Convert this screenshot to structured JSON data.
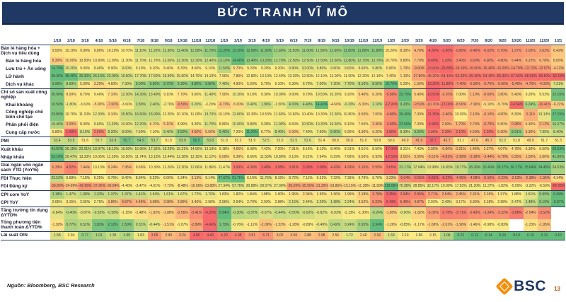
{
  "title": "BỨC TRANH VĨ MÔ",
  "footer": {
    "source": "Nguồn: Bloomberg, BSC Research",
    "logo_text": "BSC",
    "page": "13"
  },
  "colors": {
    "header_bg": "#1F3864",
    "scale_low": "#F8696B",
    "scale_mid": "#FFEB84",
    "scale_high": "#63BE7B",
    "logo_orange": "#F29111",
    "page_num_orange": "#C55A11"
  },
  "chart_data": {
    "type": "heatmap",
    "note": "values are monthly YoY readings; cell color = per-row 3-color scale (min red, median yellow, max green); rows flagged invert use reversed scale; blank strings = no data",
    "columns": [
      "1/18",
      "2/18",
      "3/18",
      "4/18",
      "5/18",
      "6/18",
      "7/18",
      "8/18",
      "9/18",
      "10/18",
      "11/18",
      "12/18",
      "1/19",
      "2/19",
      "3/19",
      "4/19",
      "5/19",
      "6/19",
      "7/19",
      "8/19",
      "9/19",
      "10/19",
      "11/19",
      "12/19",
      "1/20",
      "2/20",
      "3/20",
      "4/20",
      "5/20",
      "6/20",
      "7/20",
      "8/20",
      "9/20",
      "10/20",
      "11/20",
      "12/20",
      "1/21"
    ],
    "rows": [
      {
        "label": "Bán lẻ hàng hóa + Dịch vụ tiêu dùng",
        "indent": false,
        "invert": false,
        "group_end": false,
        "values": [
          "9.50%",
          "10.10%",
          "9.90%",
          "9.80%",
          "10.10%",
          "10.70%",
          "11.10%",
          "11.20%",
          "11.30%",
          "11.40%",
          "11.50%",
          "11.70%",
          "12.20%",
          "12.20%",
          "12.00%",
          "11.90%",
          "11.60%",
          "11.50%",
          "11.60%",
          "11.50%",
          "11.60%",
          "11.80%",
          "11.80%",
          "11.80%",
          "10.20%",
          "8.30%",
          "4.70%",
          "-4.30%",
          "-3.90%",
          "-0.80%",
          "-0.40%",
          "-0.02%",
          "0.70%",
          "1.27%",
          "2.03%",
          "2.62%",
          "6.42%"
        ]
      },
      {
        "label": "Bán lẻ hàng hóa",
        "indent": true,
        "invert": false,
        "group_end": false,
        "values": [
          "8.30%",
          "10.00%",
          "10.50%",
          "10.80%",
          "11.00%",
          "11.30%",
          "11.70%",
          "11.70%",
          "12.00%",
          "12.20%",
          "12.30%",
          "12.40%",
          "13.10%",
          "14.40%",
          "13.40%",
          "13.20%",
          "12.70%",
          "12.50%",
          "12.50%",
          "12.50%",
          "12.60%",
          "12.80%",
          "12.70%",
          "12.70%",
          "10.70%",
          "9.80%",
          "7.70%",
          "0.40%",
          "1.20%",
          "3.40%",
          "3.60%",
          "4.00%",
          "4.80%",
          "5.44%",
          "6.22%",
          "6.78%",
          "8.65%"
        ]
      },
      {
        "label": "Lưu trú + Ăn uống",
        "indent": true,
        "invert": false,
        "group_end": false,
        "values": [
          "14.70%",
          "10.20%",
          "9.00%",
          "9.40%",
          "8.90%",
          "9.60%",
          "9.10%",
          "9.10%",
          "8.40%",
          "8.30%",
          "8.60%",
          "9.10%",
          "11.50%",
          "5.70%",
          "9.20%",
          "9.20%",
          "9.20%",
          "9.80%",
          "10.00%",
          "9.80%",
          "9.60%",
          "9.60%",
          "9.60%",
          "9.80%",
          "6.80%",
          "1.70%",
          "-9.60%",
          "-23.60%",
          "-25.80%",
          "-18.10%",
          "-16.60%",
          "-16.40%",
          "-15.00%",
          "-14.70%",
          "-13.72%",
          "-12.97%",
          "-4.13%"
        ]
      },
      {
        "label": "Lữ hành",
        "indent": true,
        "invert": false,
        "group_end": false,
        "values": [
          "39.30%",
          "38.40%",
          "30.30%",
          "26.10%",
          "23.00%",
          "19.50%",
          "17.70%",
          "17.60%",
          "16.90%",
          "15.60%",
          "14.70%",
          "14.10%",
          "7.90%",
          "7.80%",
          "12.80%",
          "13.10%",
          "12.40%",
          "13.30%",
          "12.50%",
          "12.10%",
          "12.00%",
          "11.90%",
          "12.20%",
          "12.10%",
          "7.40%",
          "1.10%",
          "-27.80%",
          "-45.20%",
          "-54.10%",
          "-53.20%",
          "-55.40%",
          "-54.40%",
          "-56.30%",
          "-57.66%",
          "-58.60%",
          "-59.50%",
          "-62.18%"
        ]
      },
      {
        "label": "Dịch vụ khác",
        "indent": true,
        "invert": false,
        "group_end": true,
        "values": [
          "9.90%",
          "8.50%",
          "5.00%",
          "3.20%",
          "4.60%",
          "7.30%",
          "9.00%",
          "9.50%",
          "9.70%",
          "9.30%",
          "9.80%",
          "9.80%",
          "7.40%",
          "4.90%",
          "5.20%",
          "5.70%",
          "6.10%",
          "6.30%",
          "6.70%",
          "7.00%",
          "7.30%",
          "7.70%",
          "8.10%",
          "8.50%",
          "10.70%",
          "5.20%",
          "1.50%",
          "-13.20%",
          "-11.80%",
          "-7.40%",
          "-5.90%",
          "-5.70%",
          "-5.60%",
          "-5.40%",
          "-4.76%",
          "-4.03%",
          "7.31%"
        ]
      },
      {
        "label": "Chỉ số sản xuất công nghiệp",
        "indent": false,
        "invert": false,
        "group_end": false,
        "values": [
          "20.90%",
          "8.00%",
          "8.70%",
          "9.40%",
          "7.10%",
          "12.30%",
          "14.30%",
          "13.40%",
          "9.10%",
          "7.70%",
          "9.60%",
          "11.40%",
          "7.90%",
          "10.30%",
          "9.10%",
          "9.30%",
          "10.00%",
          "9.60%",
          "9.70%",
          "10.50%",
          "10.20%",
          "9.20%",
          "5.40%",
          "6.20%",
          "-5.50%",
          "23.70%",
          "5.40%",
          "-10.50%",
          "-3.10%",
          "7.00%",
          "1.10%",
          "-0.60%",
          "3.80%",
          "5.40%",
          "9.20%",
          "9.52%",
          "22.16%"
        ]
      },
      {
        "label": "Khai khoáng",
        "indent": true,
        "invert": false,
        "group_end": false,
        "values": [
          "10.50%",
          "-1.80%",
          "-3.60%",
          "-5.00%",
          "-7.60%",
          "-3.60%",
          "2.80%",
          "2.40%",
          "-2.70%",
          "-9.50%",
          "0.20%",
          "-3.20%",
          "-6.70%",
          "-5.00%",
          "0.40%",
          "1.96%",
          "-1.50%",
          "4.00%",
          "4.40%",
          "14.40%",
          "-4.60%",
          "-0.20%",
          "-5.30%",
          "2.10%",
          "-12.90%",
          "9.20%",
          "-9.50%",
          "-10.70%",
          "-13.00%",
          "-8.90%",
          "-7.90%",
          "-5.10%",
          "-5.70%",
          "-14.54%",
          "6.24%",
          "-10.41%",
          "-6.22%"
        ]
      },
      {
        "label": "Công nghiệp chế biến chế tạo",
        "indent": true,
        "invert": false,
        "group_end": false,
        "values": [
          "23.80%",
          "10.70%",
          "11.10%",
          "12.30%",
          "9.10%",
          "15.50%",
          "16.60%",
          "16.00%",
          "11.20%",
          "10.10%",
          "11.00%",
          "13.70%",
          "10.10%",
          "12.80%",
          "10.30%",
          "10.53%",
          "11.60%",
          "10.60%",
          "10.40%",
          "10.30%",
          "12.30%",
          "10.80%",
          "6.50%",
          "7.00%",
          "-4.80%",
          "26.40%",
          "7.30%",
          "-11.30%",
          "-2.40%",
          "10.30%",
          "2.10%",
          "-0.10%",
          "4.60%",
          "8.30%",
          "0.119",
          "13.13%",
          "27.15%"
        ]
      },
      {
        "label": "Phân phối điện",
        "indent": true,
        "invert": false,
        "group_end": false,
        "values": [
          "15.40%",
          "3.00%",
          "8.30%",
          "9.60%",
          "11.20%",
          "10.00%",
          "12.20%",
          "6.70%",
          "5.10%",
          "8.90%",
          "9.20%",
          "11.70%",
          "8.80%",
          "10.90%",
          "9.80%",
          "9.39%",
          "11.00%",
          "8.60%",
          "10.50%",
          "10.30%",
          "10.60%",
          "8.10%",
          "7.50%",
          "3.30%",
          "-3.50%",
          "22.50%",
          "7.30%",
          "-6.90%",
          "2.00%",
          "1.70%",
          "2.70%",
          "-0.70%",
          "5.50%",
          "0.98%",
          "5.30%",
          "2.12%",
          "16.27%"
        ]
      },
      {
        "label": "Cung cấp nước",
        "indent": true,
        "invert": false,
        "group_end": true,
        "values": [
          "6.80%",
          "1.00%",
          "8.10%",
          "2.60%",
          "8.20%",
          "8.00%",
          "7.60%",
          "7.10%",
          "8.40%",
          "9.50%",
          "4.50%",
          "5.60%",
          "9.40%",
          "7.20%",
          "11.00%",
          "6.77%",
          "8.40%",
          "6.00%",
          "7.40%",
          "7.60%",
          "8.90%",
          "6.90%",
          "6.30%",
          "6.20%",
          "1.60%",
          "8.30%",
          "9.50%",
          "2.00%",
          "2.30%",
          "2.10%",
          "4.50%",
          "2.20%",
          "5.30%",
          "9.91%",
          "5.30%",
          "7.95%",
          "8.40%"
        ]
      },
      {
        "label": "PMI",
        "indent": false,
        "invert": false,
        "group_end": true,
        "values": [
          "53.4",
          "53.5",
          "51.6",
          "52.7",
          "53.9",
          "55.7",
          "54.9",
          "53.7",
          "51.5",
          "53.9",
          "56.5",
          "53.8",
          "51.9",
          "51.2",
          "51.9",
          "52.5",
          "52.0",
          "52.5",
          "52.6",
          "51.4",
          "50.5",
          "50.0",
          "51.0",
          "50.8",
          "50.6",
          "49.0",
          "41.9",
          "32.7",
          "42.7",
          "51.1",
          "47.6",
          "45.7",
          "52.2",
          "51.8",
          "49.9",
          "51.7",
          "51.3"
        ]
      },
      {
        "label": "Xuất khẩu",
        "indent": false,
        "invert": false,
        "group_end": false,
        "values": [
          "41.62%",
          "26.15%",
          "22.01%",
          "18.97%",
          "18.13%",
          "16.99%",
          "16.66%",
          "17.32%",
          "16.29%",
          "15.21%",
          "14.50%",
          "13.19%",
          "9.18%",
          "4.65%",
          "8.38%",
          "7.42%",
          "7.20%",
          "7.31%",
          "8.16%",
          "8.13%",
          "8.46%",
          "8.31%",
          "8.01%",
          "8.50%",
          "-17.00%",
          "8.21%",
          "7.43%",
          "2.05%",
          "-0.90%",
          "0.21%",
          "1.46%",
          "2.37%",
          "4.07%",
          "4.78%",
          "5.30%",
          "6.50%",
          "50.53%"
        ]
      },
      {
        "label": "Nhập khẩu",
        "indent": false,
        "invert": false,
        "group_end": true,
        "values": [
          "53.10%",
          "20.47%",
          "13.33%",
          "10.05%",
          "11.39%",
          "10.50%",
          "11.74%",
          "13.13%",
          "12.44%",
          "12.38%",
          "12.15%",
          "11.12%",
          "6.09%",
          "6.39%",
          "8.66%",
          "11.53%",
          "10.80%",
          "9.13%",
          "9.21%",
          "7.94%",
          "8.29%",
          "7.69%",
          "6.66%",
          "6.92%",
          "-12.53%",
          "3.01%",
          "3.56%",
          "-0.51%",
          "-4.81%",
          "-2.99%",
          "-3.18%",
          "-2.44%",
          "-0.78%",
          "0.35%",
          "1.50%",
          "3.60%",
          "41.00%"
        ]
      },
      {
        "label": "Giải ngân vốn ngân sách YTD (YoY%)",
        "indent": false,
        "invert": false,
        "group_end": true,
        "values": [
          "6.39%",
          "4.52%",
          "7.44%",
          "10.13%",
          "8.24%",
          "7.95%",
          "9.66%",
          "10.30%",
          "11.26%",
          "12.30%",
          "12.66%",
          "11.86%",
          "11.47%",
          "3.93%",
          "4.30%",
          "3.48%",
          "3.58%",
          "3.81%",
          "3.00%",
          "3.08%",
          "4.42%",
          "4.93%",
          "5.16%",
          "5.55%",
          "3.65%",
          "22.17%",
          "17.04%",
          "13.98%",
          "16.83%",
          "19.77%",
          "28.26%",
          "32.40%",
          "35.27%",
          "36.17%",
          "35.84%",
          "34.45%",
          "24.53%"
        ]
      },
      {
        "label": "FDI Thực hiện",
        "indent": false,
        "invert": false,
        "group_end": false,
        "values": [
          "23.53%",
          "9.68%",
          "7.18%",
          "6.25%",
          "9.76%",
          "8.42%",
          "8.84%",
          "9.22%",
          "6.00%",
          "6.34%",
          "3.13%",
          "9.14%",
          "47.62%",
          "51.76%",
          "6.19%",
          "11.76%",
          "8.15%",
          "8.72%",
          "7.11%",
          "6.31%",
          "7.32%",
          "7.35%",
          "6.79%",
          "6.70%",
          "3.23%",
          "-5.04%",
          "-6.55%",
          "-9.65%",
          "-8.22%",
          "-4.95%",
          "-4.08%",
          "-5.10%",
          "-3.23%",
          "-2.53%",
          "-2.38%",
          "-1.96%",
          "4.14%"
        ]
      },
      {
        "label": "FDI Đăng ký",
        "indent": false,
        "invert": false,
        "group_end": true,
        "values": [
          "-36.80%",
          "-24.99%",
          "-42.96%",
          "-37.26%",
          "-30.84%",
          "-4.40%",
          "-3.47%",
          "-4.01%",
          "-7.72%",
          "-8.48%",
          "-16.56%",
          "-13.88%",
          "27.34%",
          "57.76%",
          "30.89%",
          "28.57%",
          "27.09%",
          "-36.26%",
          "-35.56%",
          "-31.20%",
          "-19.86%",
          "-15.15%",
          "-11.38%",
          "-11.83%",
          "318.66%",
          "70.98%",
          "28.85%",
          "32.17%",
          "19.90%",
          "17.53%",
          "21.20%",
          "11.37%",
          "-1.82%",
          "-5.09%",
          "-3.22%",
          "-6.59%",
          "-62.55%"
        ]
      },
      {
        "label": "CPI core YoY",
        "indent": false,
        "invert": true,
        "group_end": false,
        "values": [
          "1.18%",
          "1.47%",
          "1.38%",
          "1.33%",
          "1.37%",
          "1.37%",
          "1.41%",
          "1.54%",
          "1.61%",
          "1.67%",
          "1.72%",
          "1.70%",
          "1.83%",
          "1.82%",
          "1.84%",
          "1.88%",
          "1.90%",
          "1.96%",
          "2.04%",
          "1.95%",
          "1.96%",
          "1.99%",
          "2.18%",
          "2.78%",
          "3.25%",
          "2.94%",
          "2.95%",
          "2.71%",
          "2.54%",
          "2.45%",
          "2.31%",
          "2.16%",
          "1.97%",
          "1.88%",
          "1.61%",
          "0.99%",
          "0.49%"
        ]
      },
      {
        "label": "CPI YoY",
        "indent": false,
        "invert": true,
        "group_end": true,
        "values": [
          "2.65%",
          "3.15%",
          "2.66%",
          "2.75%",
          "3.86%",
          "4.67%",
          "4.46%",
          "3.98%",
          "3.98%",
          "3.89%",
          "3.46%",
          "2.98%",
          "2.56%",
          "2.64%",
          "2.70%",
          "2.93%",
          "2.88%",
          "2.16%",
          "2.44%",
          "2.26%",
          "1.98%",
          "2.24%",
          "3.52%",
          "5.23%",
          "6.43%",
          "5.40%",
          "4.87%",
          "2.93%",
          "2.40%",
          "3.17%",
          "3.39%",
          "3.18%",
          "2.98%",
          "2.47%",
          "1.48%",
          "0.19%",
          "-0.97%"
        ]
      },
      {
        "label": "Tăng trưởng tín dụng ΔYTD%",
        "indent": false,
        "invert": false,
        "group_end": false,
        "values": [
          "-0.84%",
          "-0.40%",
          "-0.87%",
          "-0.53%",
          "-0.58%",
          "-1.15%",
          "-1.48%",
          "-1.82%",
          "-1.88%",
          "-2.56%",
          "-3.41%",
          "-4.35%",
          "0.94%",
          "-0.30%",
          "-0.37%",
          "-0.67%",
          "-0.44%",
          "-0.50%",
          "-0.62%",
          "-0.82%",
          "-0.93%",
          "-1.13%",
          "-1.30%",
          "-0.24%",
          "-1.80%",
          "-0.90%",
          "-1.82%",
          "-3.05%",
          "-3.78%",
          "-3.71%",
          "-3.43%",
          "-3.34%",
          "-3.32%",
          "-3.88%",
          "-2.54%",
          "-3.52%",
          ""
        ]
      },
      {
        "label": "Tổng phương tiện thanh toán ΔYTD%",
        "indent": false,
        "invert": false,
        "group_end": true,
        "values": [
          "-1.30%",
          "0.77%",
          "0.52%",
          "1.83%",
          "2.12%",
          "1.50%",
          "0.31%",
          "-0.44%",
          "-1.51%",
          "-1.07%",
          "-2.89%",
          "-4.46%",
          "1.73%",
          "-0.76%",
          "-1.12%",
          "-2.09%",
          "-1.53%",
          "-1.28%",
          "-0.89%",
          "-0.49%",
          "0.42%",
          "0.24%",
          "0.93%",
          "2.34%",
          "-1.26%",
          "-0.85%",
          "-1.17%",
          "-1.68%",
          "-2.01%",
          "-1.96%",
          "-1.46%",
          "-0.98%",
          "-0.83%",
          "",
          "-1.23%",
          "-1.95%",
          ""
        ]
      },
      {
        "label": "Lãi suất O/N",
        "indent": false,
        "invert": true,
        "group_end": true,
        "values": [
          "1.58",
          "2.04",
          "0.77",
          "1.01",
          "1.36",
          "1.09",
          "1.83",
          "3.65",
          "2.99",
          "3.24",
          "4.50",
          "4.40",
          "4.20",
          "4.08",
          "3.51",
          "3.71",
          "3.02",
          "3.06",
          "2.88",
          "2.98",
          "2.56",
          "1.72",
          "2.40",
          "2.92",
          "1.63",
          "2.10",
          "1.96",
          "2.15",
          "1.06",
          "0.22",
          "0.11",
          "0.14",
          "0.10",
          "0.10",
          "0.10",
          "0.10",
          "0.10"
        ]
      }
    ]
  }
}
